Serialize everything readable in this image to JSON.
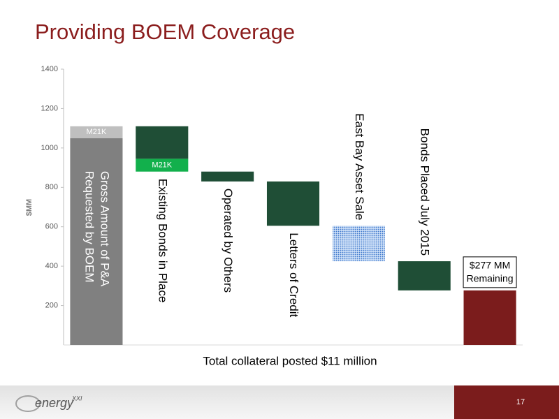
{
  "chart_data": {
    "type": "waterfall",
    "title": "Providing BOEM Coverage",
    "ylabel": "$MM",
    "xlabel": "Total collateral posted $11 million",
    "ylim": [
      0,
      1400
    ],
    "yticks": [
      200,
      400,
      600,
      800,
      1000,
      1200,
      1400
    ],
    "bars": [
      {
        "segments": [
          {
            "value": 1050,
            "color": "#808080"
          },
          {
            "value": 60,
            "color": "#bfbfbf",
            "label": "M21K"
          }
        ],
        "label": [
          "Gross Amount of P&A",
          "Requested by BOEM"
        ],
        "label_position": "inside"
      },
      {
        "segments": [
          {
            "value": -165,
            "color": "#1f4e36"
          },
          {
            "value": -65,
            "color": "#12b04c",
            "label": "M21K"
          }
        ],
        "label": "Existing Bonds in Place",
        "label_position": "below"
      },
      {
        "segments": [
          {
            "value": -50,
            "color": "#1f4e36"
          }
        ],
        "label": "Operated by Others",
        "label_position": "below"
      },
      {
        "segments": [
          {
            "value": -225,
            "color": "#1f4e36"
          }
        ],
        "label": "Letters of Credit",
        "label_position": "below"
      },
      {
        "segments": [
          {
            "value": -180,
            "color": "#5b8fd6",
            "pattern": "dots"
          }
        ],
        "label": "East Bay Asset Sale",
        "label_position": "above"
      },
      {
        "segments": [
          {
            "value": -148,
            "color": "#1f4e36"
          }
        ],
        "label": "Bonds Placed July 2015",
        "label_position": "above"
      },
      {
        "segments": [
          {
            "value": 277,
            "color": "#7b1c1c"
          }
        ],
        "total": true,
        "value_label": "$277 MM",
        "label": "Remaining",
        "label_position": "callout"
      }
    ]
  },
  "footer": {
    "logo": "energy",
    "logo_mark": "XXI",
    "page_number": "17"
  }
}
